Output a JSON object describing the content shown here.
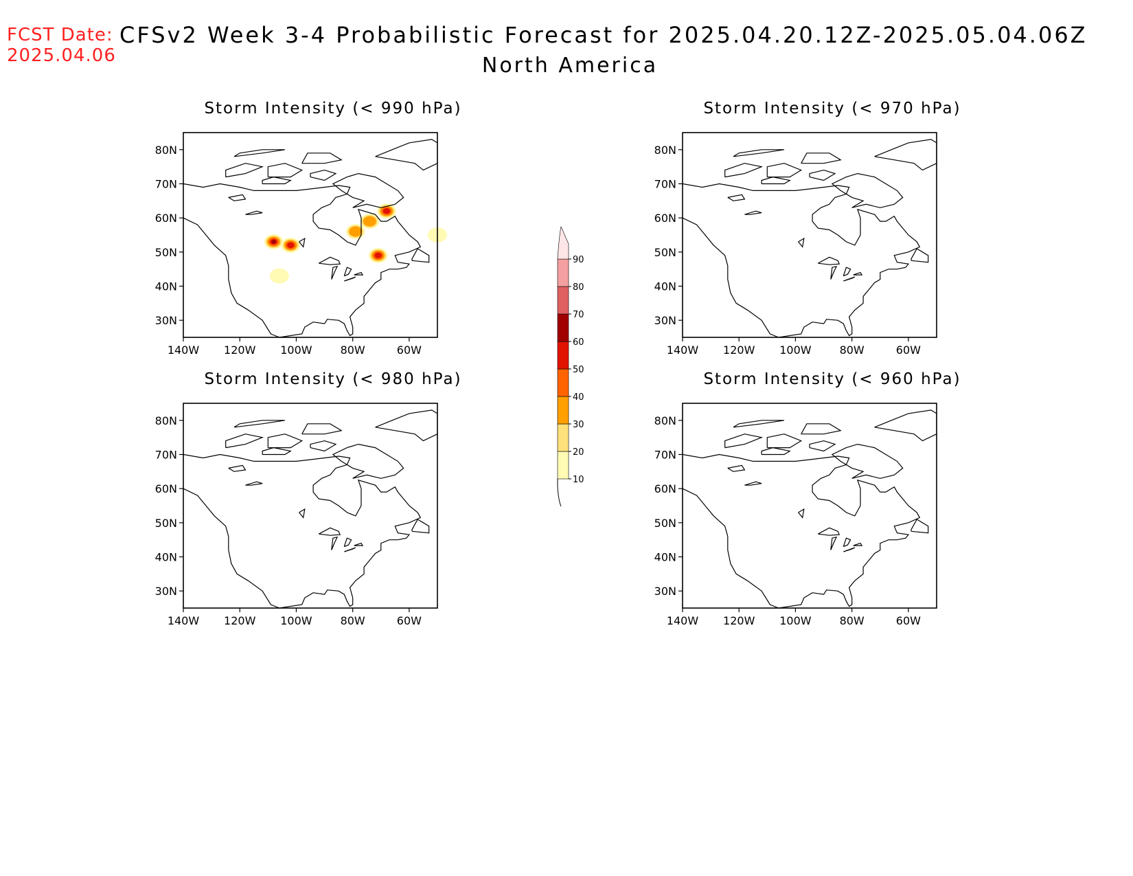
{
  "header": {
    "fcst_label": "FCST Date:",
    "fcst_date": "2025.04.06",
    "title": "CFSv2 Week 3-4 Probabilistic Forecast for 2025.04.20.12Z-2025.05.04.06Z",
    "region": "North America"
  },
  "panels": [
    {
      "id": "p990",
      "title": "Storm Intensity (< 990 hPa)",
      "has_data": true
    },
    {
      "id": "p970",
      "title": "Storm Intensity (< 970 hPa)",
      "has_data": false
    },
    {
      "id": "p980",
      "title": "Storm Intensity (< 980 hPa)",
      "has_data": false
    },
    {
      "id": "p960",
      "title": "Storm Intensity (< 960 hPa)",
      "has_data": false
    }
  ],
  "axes": {
    "lat_ticks": [
      "80N",
      "70N",
      "60N",
      "50N",
      "40N",
      "30N"
    ],
    "lon_ticks": [
      "140W",
      "120W",
      "100W",
      "80W",
      "60W"
    ],
    "lat_values": [
      80,
      70,
      60,
      50,
      40,
      30
    ],
    "lon_values": [
      -140,
      -120,
      -100,
      -80,
      -60
    ],
    "lat_range": [
      25,
      85
    ],
    "lon_range": [
      -140,
      -50
    ]
  },
  "colorbar": {
    "levels": [
      "10",
      "20",
      "30",
      "40",
      "50",
      "60",
      "70",
      "80",
      "90"
    ],
    "colors": [
      "#fffab4",
      "#ffe17a",
      "#ffa000",
      "#ff6400",
      "#e01400",
      "#a00000",
      "#e06060",
      "#f4a0a0",
      "#ffe6e6"
    ]
  },
  "probability_blobs": [
    {
      "lon": -108,
      "lat": 53,
      "level": 60
    },
    {
      "lon": -102,
      "lat": 52,
      "level": 50
    },
    {
      "lon": -106,
      "lat": 43,
      "level": 10
    },
    {
      "lon": -71,
      "lat": 49,
      "level": 50
    },
    {
      "lon": -79,
      "lat": 56,
      "level": 30
    },
    {
      "lon": -74,
      "lat": 59,
      "level": 30
    },
    {
      "lon": -68,
      "lat": 62,
      "level": 50
    },
    {
      "lon": -50,
      "lat": 55,
      "level": 10
    }
  ]
}
